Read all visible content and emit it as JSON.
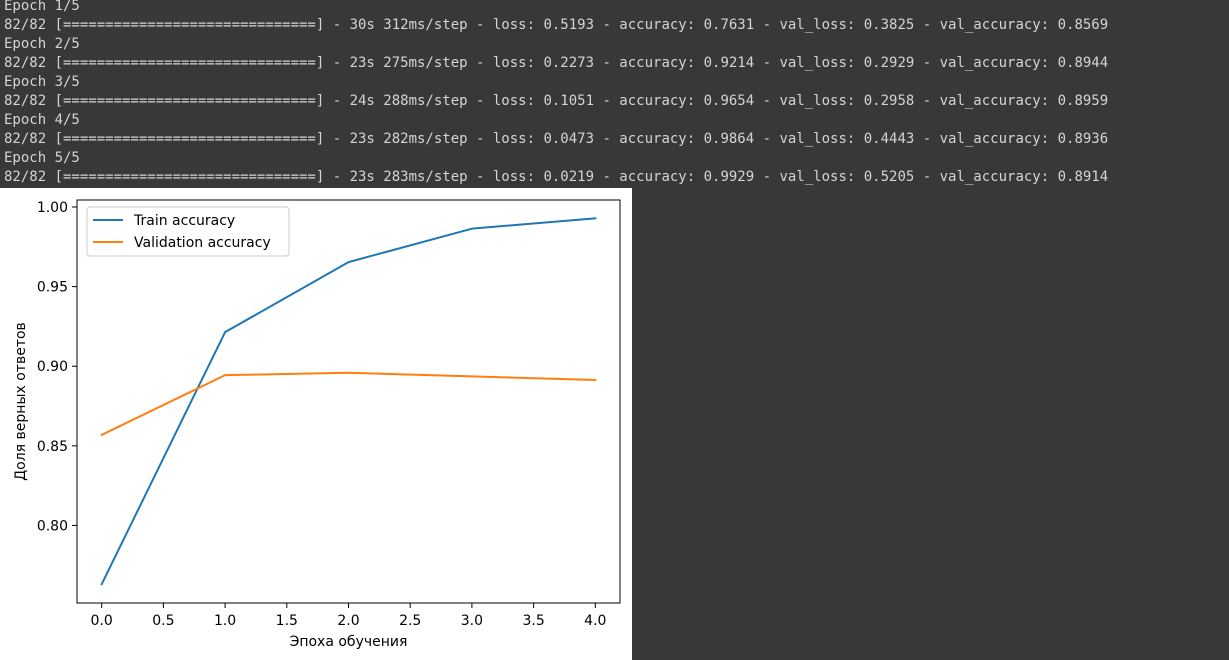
{
  "output": {
    "lines": [
      "Epoch 1/5",
      "82/82 [==============================] - 30s 312ms/step - loss: 0.5193 - accuracy: 0.7631 - val_loss: 0.3825 - val_accuracy: 0.8569",
      "Epoch 2/5",
      "82/82 [==============================] - 23s 275ms/step - loss: 0.2273 - accuracy: 0.9214 - val_loss: 0.2929 - val_accuracy: 0.8944",
      "Epoch 3/5",
      "82/82 [==============================] - 24s 288ms/step - loss: 0.1051 - accuracy: 0.9654 - val_loss: 0.2958 - val_accuracy: 0.8959",
      "Epoch 4/5",
      "82/82 [==============================] - 23s 282ms/step - loss: 0.0473 - accuracy: 0.9864 - val_loss: 0.4443 - val_accuracy: 0.8936",
      "Epoch 5/5",
      "82/82 [==============================] - 23s 283ms/step - loss: 0.0219 - accuracy: 0.9929 - val_loss: 0.5205 - val_accuracy: 0.8914"
    ]
  },
  "chart_data": {
    "type": "line",
    "title": "",
    "xlabel": "Эпоха обучения",
    "ylabel": "Доля верных ответов",
    "x": [
      0,
      1,
      2,
      3,
      4
    ],
    "series": [
      {
        "name": "Train accuracy",
        "color": "#1f77b4",
        "values": [
          0.7631,
          0.9214,
          0.9654,
          0.9864,
          0.9929
        ]
      },
      {
        "name": "Validation accuracy",
        "color": "#ff7f0e",
        "values": [
          0.8569,
          0.8944,
          0.8959,
          0.8936,
          0.8914
        ]
      }
    ],
    "xlim": [
      -0.2,
      4.2
    ],
    "ylim": [
      0.7513,
      1.0044
    ],
    "xticks": [
      0.0,
      0.5,
      1.0,
      1.5,
      2.0,
      2.5,
      3.0,
      3.5,
      4.0
    ],
    "xtick_labels": [
      "0.0",
      "0.5",
      "1.0",
      "1.5",
      "2.0",
      "2.5",
      "3.0",
      "3.5",
      "4.0"
    ],
    "yticks": [
      0.8,
      0.85,
      0.9,
      0.95,
      1.0
    ],
    "ytick_labels": [
      "0.80",
      "0.85",
      "0.90",
      "0.95",
      "1.00"
    ],
    "grid": false,
    "legend_position": "upper left"
  }
}
